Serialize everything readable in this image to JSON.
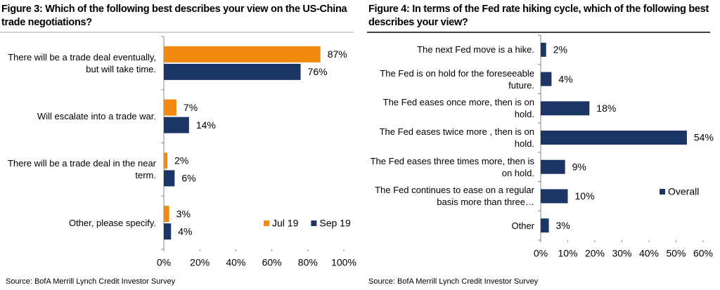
{
  "chart_data": [
    {
      "type": "bar",
      "orientation": "horizontal",
      "title": "Figure 3: Which of the following best describes your view on the US-China trade negotiations?",
      "categories": [
        "There will be a trade deal eventually, but will take time.",
        "Will escalate into a trade war.",
        "There will be a trade deal in the near term.",
        "Other, please specify."
      ],
      "series": [
        {
          "name": "Jul 19",
          "color": "#f28a0f",
          "values": [
            87,
            7,
            2,
            3
          ],
          "value_labels": [
            "87%",
            "7%",
            "2%",
            "3%"
          ]
        },
        {
          "name": "Sep 19",
          "color": "#1b3664",
          "values": [
            76,
            14,
            6,
            4
          ],
          "value_labels": [
            "76%",
            "14%",
            "6%",
            "4%"
          ]
        }
      ],
      "xlim": [
        0,
        100
      ],
      "xticks": [
        {
          "value": 0,
          "label": "0%"
        },
        {
          "value": 20,
          "label": "20%"
        },
        {
          "value": 40,
          "label": "40%"
        },
        {
          "value": 60,
          "label": "60%"
        },
        {
          "value": 80,
          "label": "80%"
        },
        {
          "value": 100,
          "label": "100%"
        }
      ],
      "legend": "lower right",
      "source": "Source:  BofA Merrill Lynch Credit Investor Survey"
    },
    {
      "type": "bar",
      "orientation": "horizontal",
      "title": "Figure 4: In terms of the Fed rate hiking cycle, which of the following best describes your view?",
      "categories": [
        "The next Fed move is a hike.",
        "The Fed is on hold for the foreseeable future.",
        "The Fed eases once more, then is on hold.",
        "The Fed eases twice more , then is on hold.",
        "The Fed eases three times more, then is on hold.",
        "The Fed continues to ease on a regular basis more than three…",
        "Other"
      ],
      "series": [
        {
          "name": "Overall",
          "color": "#1b3664",
          "values": [
            2,
            4,
            18,
            54,
            9,
            10,
            3
          ],
          "value_labels": [
            "2%",
            "4%",
            "18%",
            "54%",
            "9%",
            "10%",
            "3%"
          ]
        }
      ],
      "xlim": [
        0,
        60
      ],
      "xticks": [
        {
          "value": 0,
          "label": "0%"
        },
        {
          "value": 10,
          "label": "10%"
        },
        {
          "value": 20,
          "label": "20%"
        },
        {
          "value": 30,
          "label": "30%"
        },
        {
          "value": 40,
          "label": "40%"
        },
        {
          "value": 50,
          "label": "50%"
        },
        {
          "value": 60,
          "label": "60%"
        }
      ],
      "legend": "right",
      "source": "Source:  BofA Merrill Lynch Credit Investor Survey"
    }
  ]
}
